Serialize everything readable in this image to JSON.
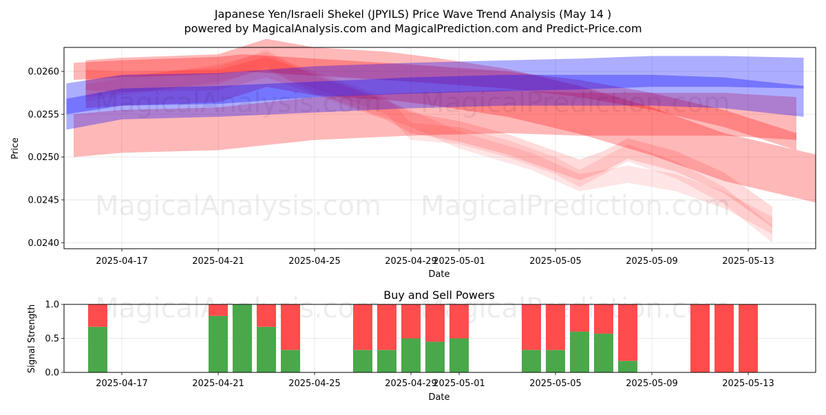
{
  "title_line1": "Japanese Yen/Israeli Shekel (JPYILS) Price Wave Trend Analysis (May 14 )",
  "title_line2": "powered by MagicalAnalysis.com and MagicalPrediction.com and Predict-Price.com",
  "watermarks": [
    "MagicalAnalysis.com",
    "MagicalPrediction.com"
  ],
  "chart_data": [
    {
      "type": "area",
      "title": "",
      "xlabel": "Date",
      "ylabel": "Price",
      "xlim": [
        "2025-04-14.6",
        "2025-05-15.8"
      ],
      "ylim": [
        0.02393,
        0.02628
      ],
      "grid": true,
      "x_ticks": [
        "2025-04-17",
        "2025-04-21",
        "2025-04-25",
        "2025-04-29",
        "2025-05-01",
        "2025-05-05",
        "2025-05-09",
        "2025-05-13"
      ],
      "y_ticks": [
        "0.0240",
        "0.0245",
        "0.0250",
        "0.0255",
        "0.0260"
      ],
      "series": [
        {
          "color": "#ff0000",
          "opacity": 0.28,
          "points": [
            [
              "2025-04-15",
              0.026
            ],
            [
              "2025-04-17",
              0.02603
            ],
            [
              "2025-04-21",
              0.02607
            ],
            [
              "2025-04-22",
              0.0261
            ],
            [
              "2025-04-25",
              0.02605
            ],
            [
              "2025-04-29",
              0.02598
            ],
            [
              "2025-05-03",
              0.0259
            ],
            [
              "2025-05-06",
              0.0258
            ],
            [
              "2025-05-09",
              0.02565
            ],
            [
              "2025-05-12",
              0.02545
            ],
            [
              "2025-05-15",
              0.02518
            ]
          ],
          "band": 0.0001
        },
        {
          "color": "#ff0000",
          "opacity": 0.28,
          "points": [
            [
              "2025-04-15",
              0.02525
            ],
            [
              "2025-04-17",
              0.0253
            ],
            [
              "2025-04-21",
              0.02533
            ],
            [
              "2025-04-25",
              0.02545
            ],
            [
              "2025-04-29",
              0.0255
            ],
            [
              "2025-05-03",
              0.02553
            ],
            [
              "2025-05-06",
              0.0255
            ],
            [
              "2025-05-09",
              0.0255
            ],
            [
              "2025-05-12",
              0.0255
            ],
            [
              "2025-05-15",
              0.02545
            ]
          ],
          "band": 0.00025
        },
        {
          "color": "#ff0000",
          "opacity": 0.28,
          "points": [
            [
              "2025-04-15.5",
              0.02585
            ],
            [
              "2025-04-17",
              0.02588
            ],
            [
              "2025-04-21",
              0.02592
            ],
            [
              "2025-04-23",
              0.0261
            ],
            [
              "2025-04-25",
              0.026
            ],
            [
              "2025-04-28",
              0.02595
            ],
            [
              "2025-04-30",
              0.02588
            ],
            [
              "2025-05-03",
              0.02575
            ],
            [
              "2025-05-06",
              0.02555
            ],
            [
              "2025-05-09",
              0.0253
            ],
            [
              "2025-05-12",
              0.025
            ],
            [
              "2025-05-15.8",
              0.02475
            ]
          ],
          "band": 0.00028
        },
        {
          "color": "#ff0000",
          "opacity": 0.14,
          "points": [
            [
              "2025-04-15.5",
              0.0259
            ],
            [
              "2025-04-17",
              0.02588
            ],
            [
              "2025-04-21",
              0.0259
            ],
            [
              "2025-04-23",
              0.02605
            ],
            [
              "2025-04-24",
              0.02595
            ],
            [
              "2025-04-26",
              0.02575
            ],
            [
              "2025-04-28",
              0.02555
            ],
            [
              "2025-04-29",
              0.0254
            ],
            [
              "2025-05-01",
              0.0253
            ],
            [
              "2025-05-03",
              0.02515
            ],
            [
              "2025-05-05",
              0.02495
            ],
            [
              "2025-05-06",
              0.02485
            ],
            [
              "2025-05-07",
              0.02495
            ],
            [
              "2025-05-08",
              0.0251
            ],
            [
              "2025-05-10",
              0.02495
            ],
            [
              "2025-05-12",
              0.0247
            ],
            [
              "2025-05-14",
              0.0243
            ]
          ],
          "band": 0.00012
        },
        {
          "color": "#ff0000",
          "opacity": 0.1,
          "points": [
            [
              "2025-04-15.5",
              0.0258
            ],
            [
              "2025-04-17",
              0.02585
            ],
            [
              "2025-04-21",
              0.02595
            ],
            [
              "2025-04-23",
              0.02615
            ],
            [
              "2025-04-24",
              0.026
            ],
            [
              "2025-04-26",
              0.0258
            ],
            [
              "2025-04-28",
              0.0256
            ],
            [
              "2025-04-29",
              0.0253
            ],
            [
              "2025-05-01",
              0.02525
            ],
            [
              "2025-05-03",
              0.0251
            ],
            [
              "2025-05-05",
              0.0249
            ],
            [
              "2025-05-06",
              0.02475
            ],
            [
              "2025-05-07",
              0.0249
            ],
            [
              "2025-05-08",
              0.02505
            ],
            [
              "2025-05-10",
              0.02485
            ],
            [
              "2025-05-12",
              0.02455
            ],
            [
              "2025-05-14",
              0.0241
            ]
          ],
          "band": 0.0001
        },
        {
          "color": "#ff0000",
          "opacity": 0.1,
          "points": [
            [
              "2025-04-15.5",
              0.02575
            ],
            [
              "2025-04-17",
              0.02582
            ],
            [
              "2025-04-21",
              0.02598
            ],
            [
              "2025-04-23",
              0.02612
            ],
            [
              "2025-04-25",
              0.02585
            ],
            [
              "2025-04-27",
              0.02565
            ],
            [
              "2025-04-29",
              0.02545
            ],
            [
              "2025-05-01",
              0.0252
            ],
            [
              "2025-05-04",
              0.02495
            ],
            [
              "2025-05-06",
              0.0247
            ],
            [
              "2025-05-08",
              0.0248
            ],
            [
              "2025-05-10",
              0.0247
            ],
            [
              "2025-05-12",
              0.0245
            ],
            [
              "2025-05-14",
              0.0242
            ]
          ],
          "band": 0.0001
        },
        {
          "color": "#0000ff",
          "opacity": 0.32,
          "points": [
            [
              "2025-04-14.7",
              0.02568
            ],
            [
              "2025-04-17",
              0.02578
            ],
            [
              "2025-04-21",
              0.0258
            ],
            [
              "2025-04-25",
              0.02588
            ],
            [
              "2025-04-29",
              0.02592
            ],
            [
              "2025-05-03",
              0.02595
            ],
            [
              "2025-05-06",
              0.02597
            ],
            [
              "2025-05-09",
              0.026
            ],
            [
              "2025-05-12",
              0.026
            ],
            [
              "2025-05-15.3",
              0.02598
            ]
          ],
          "band": 0.00018
        },
        {
          "color": "#0000ff",
          "opacity": 0.32,
          "points": [
            [
              "2025-04-14.7",
              0.0255
            ],
            [
              "2025-04-17",
              0.02562
            ],
            [
              "2025-04-21",
              0.02565
            ],
            [
              "2025-04-25",
              0.0257
            ],
            [
              "2025-04-29",
              0.02575
            ],
            [
              "2025-05-03",
              0.02578
            ],
            [
              "2025-05-06",
              0.02578
            ],
            [
              "2025-05-09",
              0.02578
            ],
            [
              "2025-05-12",
              0.02575
            ],
            [
              "2025-05-15.3",
              0.02565
            ]
          ],
          "band": 0.00018
        }
      ]
    },
    {
      "type": "bar",
      "title": "Buy and Sell Powers",
      "xlabel": "Date",
      "ylabel": "Signal Strength",
      "ylim": [
        0,
        1.0
      ],
      "y_ticks": [
        "0.0",
        "0.5",
        "1.0"
      ],
      "x_ticks": [
        "2025-04-17",
        "2025-04-21",
        "2025-04-25",
        "2025-04-29",
        "2025-05-01",
        "2025-05-05",
        "2025-05-09",
        "2025-05-13"
      ],
      "grid": true,
      "buy_color": "#4aa84a",
      "sell_color": "#ff4c4c",
      "dates": [
        "2025-04-16",
        "2025-04-21",
        "2025-04-22",
        "2025-04-23",
        "2025-04-24",
        "2025-04-27",
        "2025-04-28",
        "2025-04-29",
        "2025-04-30",
        "2025-05-01",
        "2025-05-04",
        "2025-05-05",
        "2025-05-06",
        "2025-05-07",
        "2025-05-08",
        "2025-05-11",
        "2025-05-12",
        "2025-05-13"
      ],
      "buy": [
        0.67,
        0.83,
        1.0,
        0.67,
        0.33,
        0.33,
        0.33,
        0.5,
        0.45,
        0.5,
        0.33,
        0.33,
        0.6,
        0.57,
        0.17,
        0.0,
        0.0,
        0.0
      ]
    }
  ]
}
